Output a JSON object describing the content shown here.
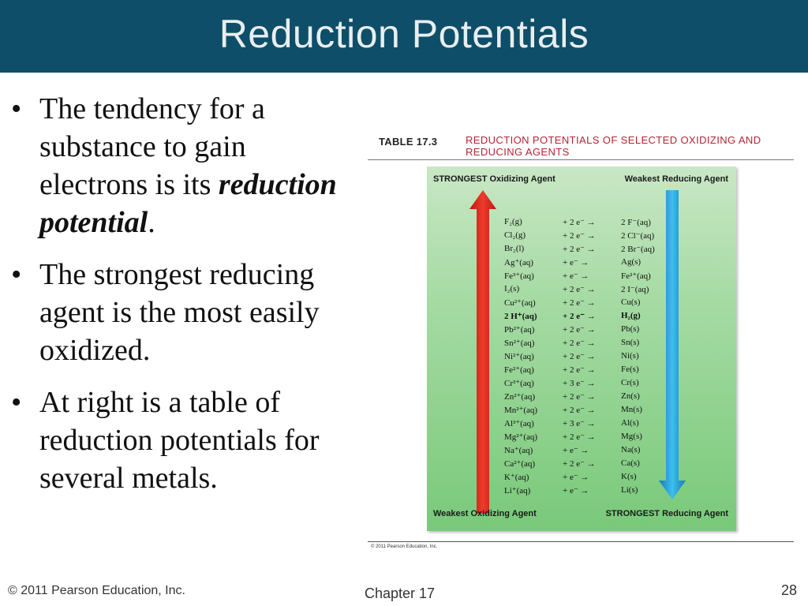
{
  "slide": {
    "title": "Reduction Potentials",
    "bullets": [
      {
        "text": "The tendency for a substance to gain electrons is its ",
        "emphasis": "reduction potential",
        "suffix": "."
      },
      {
        "text": "The strongest reducing agent is the most easily oxidized.",
        "emphasis": "",
        "suffix": ""
      },
      {
        "text": "At right is a table of reduction potentials for several metals.",
        "emphasis": "",
        "suffix": ""
      }
    ],
    "bullet_char": "•"
  },
  "figure": {
    "table_number": "TABLE 17.3",
    "caption": "REDUCTION POTENTIALS OF SELECTED OXIDIZING AND REDUCING AGENTS",
    "top_left": "STRONGEST Oxidizing Agent",
    "top_right": "Weakest Reducing Agent",
    "bottom_left": "Weakest Oxidizing Agent",
    "bottom_right": "STRONGEST Reducing Agent",
    "copyright": "© 2011 Pearson Education, Inc.",
    "colors": {
      "up_arrow": "#d8231c",
      "down_arrow": "#1e9fd8",
      "caption": "#b22534"
    },
    "rows": [
      {
        "oxidized": "F₂(g)",
        "electrons": "+ 2 e⁻ →",
        "reduced": "2 F⁻(aq)"
      },
      {
        "oxidized": "Cl₂(g)",
        "electrons": "+ 2 e⁻ →",
        "reduced": "2 Cl⁻(aq)"
      },
      {
        "oxidized": "Br₂(l)",
        "electrons": "+ 2 e⁻ →",
        "reduced": "2 Br⁻(aq)"
      },
      {
        "oxidized": "Ag⁺(aq)",
        "electrons": "+ e⁻ →",
        "reduced": "Ag(s)"
      },
      {
        "oxidized": "Fe³⁺(aq)",
        "electrons": "+ e⁻ →",
        "reduced": "Fe²⁺(aq)"
      },
      {
        "oxidized": "I₂(s)",
        "electrons": "+ 2 e⁻ →",
        "reduced": "2 I⁻(aq)"
      },
      {
        "oxidized": "Cu²⁺(aq)",
        "electrons": "+ 2 e⁻ →",
        "reduced": "Cu(s)"
      },
      {
        "oxidized": "2 H⁺(aq)",
        "electrons": "+ 2 e⁻ →",
        "reduced": "H₂(g)",
        "bold": true
      },
      {
        "oxidized": "Pb²⁺(aq)",
        "electrons": "+ 2 e⁻ →",
        "reduced": "Pb(s)"
      },
      {
        "oxidized": "Sn²⁺(aq)",
        "electrons": "+ 2 e⁻ →",
        "reduced": "Sn(s)"
      },
      {
        "oxidized": "Ni²⁺(aq)",
        "electrons": "+ 2 e⁻ →",
        "reduced": "Ni(s)"
      },
      {
        "oxidized": "Fe²⁺(aq)",
        "electrons": "+ 2 e⁻ →",
        "reduced": "Fe(s)"
      },
      {
        "oxidized": "Cr³⁺(aq)",
        "electrons": "+ 3 e⁻ →",
        "reduced": "Cr(s)"
      },
      {
        "oxidized": "Zn²⁺(aq)",
        "electrons": "+ 2 e⁻ →",
        "reduced": "Zn(s)"
      },
      {
        "oxidized": "Mn²⁺(aq)",
        "electrons": "+ 2 e⁻ →",
        "reduced": "Mn(s)"
      },
      {
        "oxidized": "Al³⁺(aq)",
        "electrons": "+ 3 e⁻ →",
        "reduced": "Al(s)"
      },
      {
        "oxidized": "Mg²⁺(aq)",
        "electrons": "+ 2 e⁻ →",
        "reduced": "Mg(s)"
      },
      {
        "oxidized": "Na⁺(aq)",
        "electrons": "+ e⁻ →",
        "reduced": "Na(s)"
      },
      {
        "oxidized": "Ca²⁺(aq)",
        "electrons": "+ 2 e⁻ →",
        "reduced": "Ca(s)"
      },
      {
        "oxidized": "K⁺(aq)",
        "electrons": "+ e⁻ →",
        "reduced": "K(s)"
      },
      {
        "oxidized": "Li⁺(aq)",
        "electrons": "+ e⁻ →",
        "reduced": "Li(s)"
      }
    ]
  },
  "footer": {
    "copyright": "© 2011 Pearson Education, Inc.",
    "chapter": "Chapter 17",
    "page": "28"
  }
}
